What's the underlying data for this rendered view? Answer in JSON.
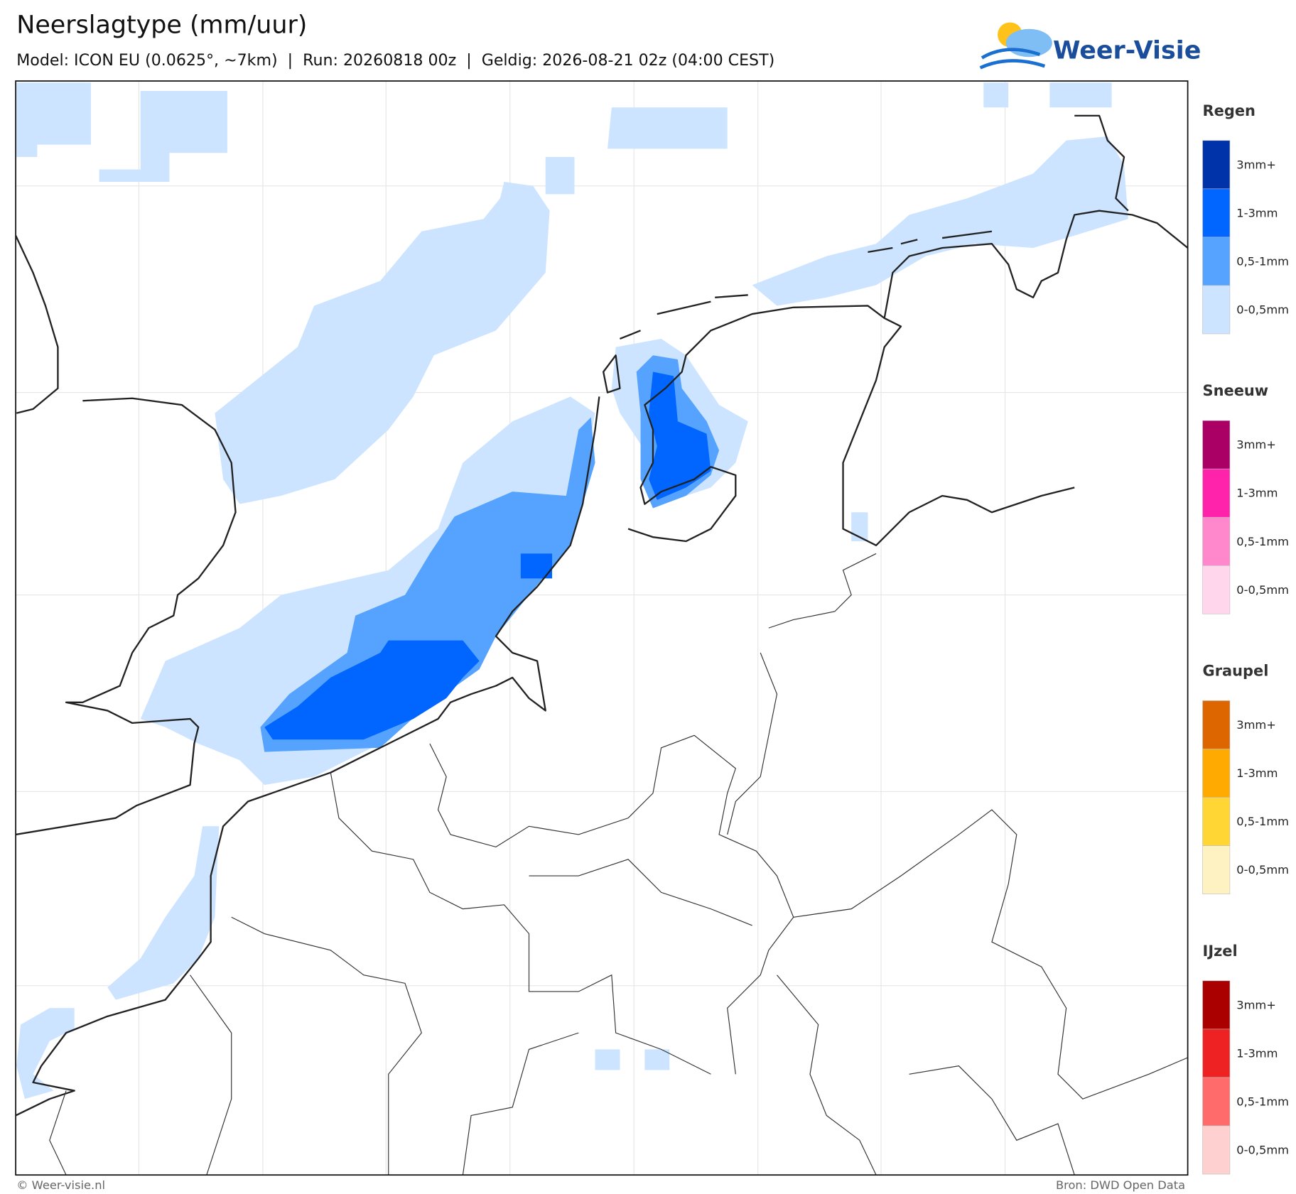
{
  "header": {
    "title": "Neerslagtype (mm/uur)",
    "subtitle": "Model: ICON EU (0.0625°, ~7km)  |  Run: 20260818 00z  |  Geldig: 2026-08-21 02z (04:00 CEST)"
  },
  "logo": {
    "text": "Weer-Visie"
  },
  "legend": {
    "groups": [
      {
        "title": "Regen",
        "items": [
          {
            "label": "3mm+",
            "color": "#0033aa"
          },
          {
            "label": "1-3mm",
            "color": "#0066ff"
          },
          {
            "label": "0,5-1mm",
            "color": "#55a3ff"
          },
          {
            "label": "0-0,5mm",
            "color": "#cce4ff"
          }
        ]
      },
      {
        "title": "Sneeuw",
        "items": [
          {
            "label": "3mm+",
            "color": "#aa0066"
          },
          {
            "label": "1-3mm",
            "color": "#ff22aa"
          },
          {
            "label": "0,5-1mm",
            "color": "#ff88cc"
          },
          {
            "label": "0-0,5mm",
            "color": "#ffd6ec"
          }
        ]
      },
      {
        "title": "Graupel",
        "items": [
          {
            "label": "3mm+",
            "color": "#dd6600"
          },
          {
            "label": "1-3mm",
            "color": "#ffaa00"
          },
          {
            "label": "0,5-1mm",
            "color": "#ffd633"
          },
          {
            "label": "0-0,5mm",
            "color": "#fff2c2"
          }
        ]
      },
      {
        "title": "IJzel",
        "items": [
          {
            "label": "3mm+",
            "color": "#aa0000"
          },
          {
            "label": "1-3mm",
            "color": "#ee2222"
          },
          {
            "label": "0,5-1mm",
            "color": "#ff6b6b"
          },
          {
            "label": "0-0,5mm",
            "color": "#ffd0d0"
          }
        ]
      }
    ]
  },
  "footer": {
    "left": "© Weer-visie.nl",
    "right": "Bron: DWD Open Data"
  }
}
